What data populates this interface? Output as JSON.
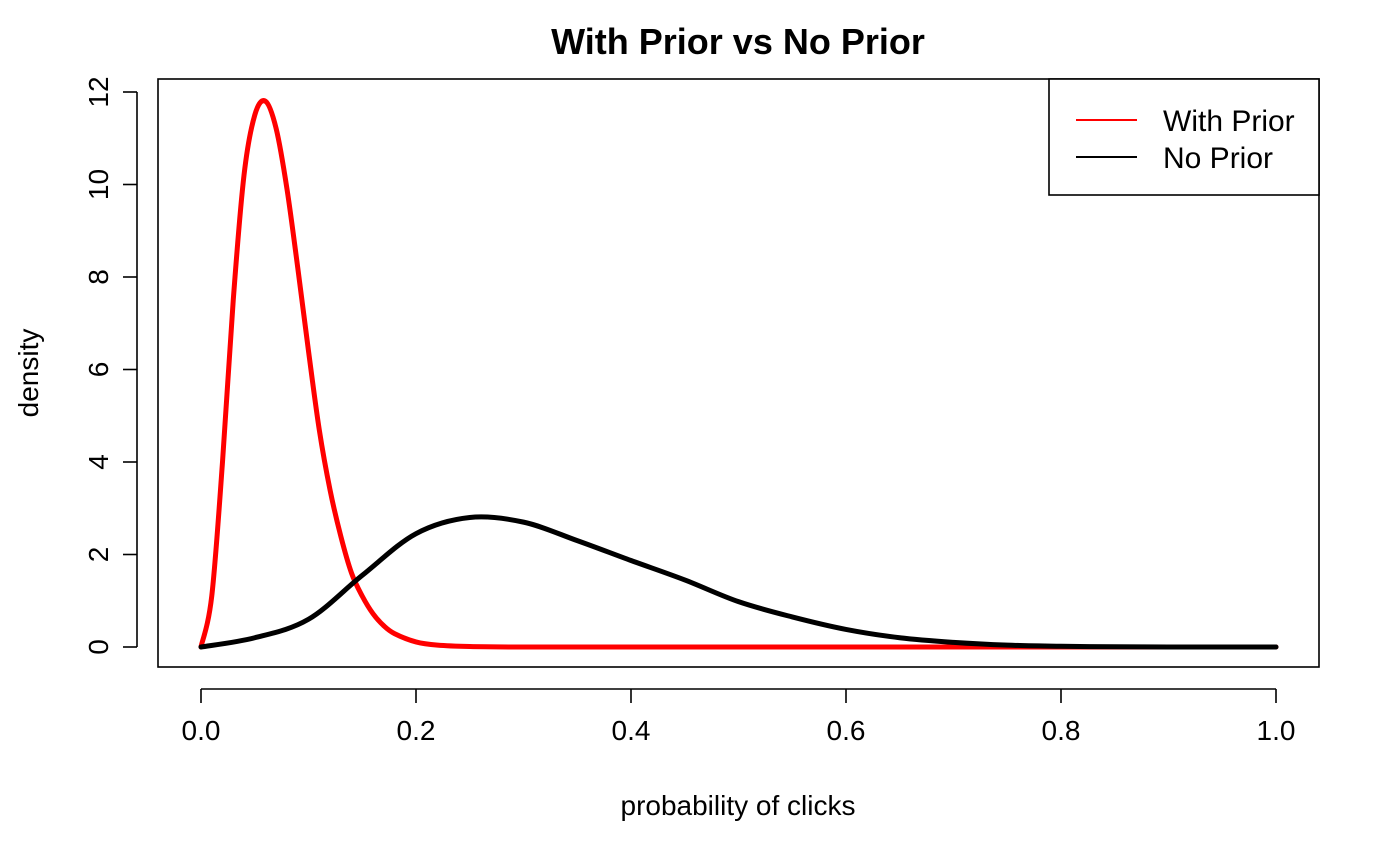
{
  "chart_data": {
    "type": "line",
    "title": "With Prior vs No Prior",
    "xlabel": "probability of clicks",
    "ylabel": "density",
    "xlim": [
      0,
      1
    ],
    "ylim": [
      0,
      12
    ],
    "x_ticks": [
      "0.0",
      "0.2",
      "0.4",
      "0.6",
      "0.8",
      "1.0"
    ],
    "y_ticks": [
      "0",
      "2",
      "4",
      "6",
      "8",
      "10",
      "12"
    ],
    "grid": false,
    "legend_position": "top-right",
    "series": [
      {
        "name": "With Prior",
        "color": "#ff0000",
        "x": [
          0,
          0.01,
          0.02,
          0.03,
          0.04,
          0.05,
          0.06,
          0.07,
          0.08,
          0.09,
          0.1,
          0.11,
          0.12,
          0.13,
          0.14,
          0.15,
          0.16,
          0.17,
          0.18,
          0.2,
          0.22,
          0.25,
          0.3,
          0.4,
          0.5,
          0.6,
          0.7,
          0.8,
          0.9,
          1.0
        ],
        "y": [
          0,
          1.1,
          4.0,
          7.5,
          10.2,
          11.5,
          11.8,
          11.2,
          9.9,
          8.2,
          6.4,
          4.7,
          3.4,
          2.4,
          1.6,
          1.1,
          0.72,
          0.46,
          0.29,
          0.11,
          0.04,
          0.01,
          0,
          0,
          0,
          0,
          0,
          0,
          0,
          0
        ]
      },
      {
        "name": "No Prior",
        "color": "#000000",
        "x": [
          0,
          0.05,
          0.1,
          0.15,
          0.2,
          0.25,
          0.3,
          0.35,
          0.4,
          0.45,
          0.5,
          0.55,
          0.6,
          0.65,
          0.7,
          0.75,
          0.8,
          0.85,
          0.9,
          0.95,
          1.0
        ],
        "y": [
          0,
          0.2,
          0.6,
          1.55,
          2.45,
          2.8,
          2.7,
          2.3,
          1.87,
          1.45,
          0.98,
          0.65,
          0.38,
          0.2,
          0.1,
          0.04,
          0.015,
          0.005,
          0.001,
          0,
          0
        ]
      }
    ]
  }
}
